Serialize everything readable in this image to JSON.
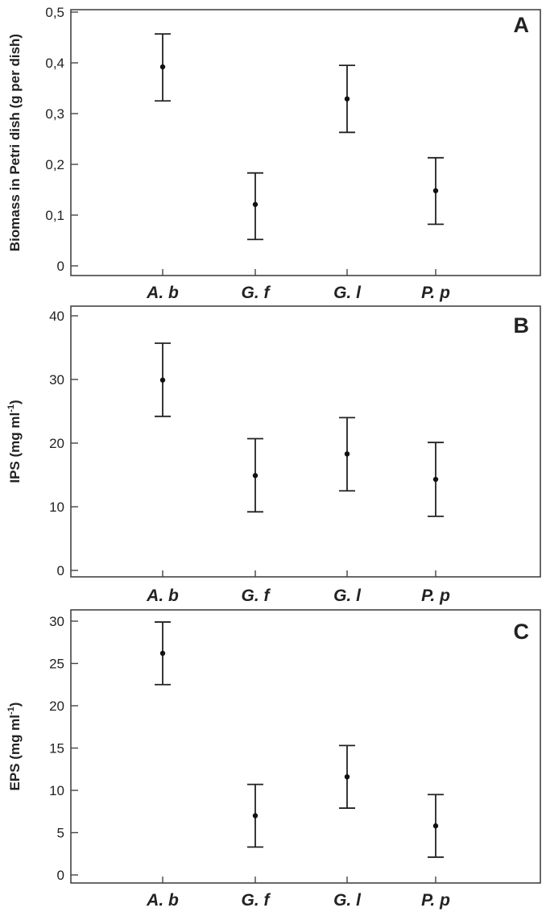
{
  "figure": {
    "panels": [
      {
        "letter": "A",
        "ylabel": "Biomass in Petri dish (g per dish)",
        "ylabel_super": "",
        "ylabel_tail": "",
        "ylim": [
          0,
          0.5
        ],
        "yticks": [
          0,
          0.1,
          0.2,
          0.3,
          0.4,
          0.5
        ],
        "yticklabels": [
          "0",
          "0,1",
          "0,2",
          "0,3",
          "0,4",
          "0,5"
        ],
        "categories": [
          "A. b",
          "G. f",
          "G. l",
          "P. p"
        ],
        "means": [
          0.392,
          0.121,
          0.329,
          0.148
        ],
        "lower": [
          0.325,
          0.052,
          0.263,
          0.082
        ],
        "upper": [
          0.457,
          0.183,
          0.395,
          0.213
        ]
      },
      {
        "letter": "B",
        "ylabel": "IPS (mg ml",
        "ylabel_super": "-1",
        "ylabel_tail": ")",
        "ylim": [
          0,
          40
        ],
        "yticks": [
          0,
          10,
          20,
          30,
          40
        ],
        "yticklabels": [
          "0",
          "10",
          "20",
          "30",
          "40"
        ],
        "categories": [
          "A. b",
          "G. f",
          "G. l",
          "P. p"
        ],
        "means": [
          29.9,
          14.9,
          18.3,
          14.3
        ],
        "lower": [
          24.2,
          9.2,
          12.5,
          8.5
        ],
        "upper": [
          35.7,
          20.7,
          24.0,
          20.1
        ]
      },
      {
        "letter": "C",
        "ylabel": "EPS (mg ml",
        "ylabel_super": "-1",
        "ylabel_tail": ")",
        "ylim": [
          0,
          30
        ],
        "yticks": [
          0,
          5,
          10,
          15,
          20,
          25,
          30
        ],
        "yticklabels": [
          "0",
          "5",
          "10",
          "15",
          "20",
          "25",
          "30"
        ],
        "categories": [
          "A. b",
          "G. f",
          "G. l",
          "P. p"
        ],
        "means": [
          26.2,
          7.0,
          11.6,
          5.8
        ],
        "lower": [
          22.5,
          3.3,
          7.9,
          2.1
        ],
        "upper": [
          29.9,
          10.7,
          15.3,
          9.5
        ]
      }
    ]
  },
  "chart_data": [
    {
      "type": "scatter",
      "title": "A",
      "categories": [
        "A. b",
        "G. f",
        "G. l",
        "P. p"
      ],
      "series": [
        {
          "values": [
            0.392,
            0.121,
            0.329,
            0.148
          ],
          "error_low": [
            0.325,
            0.052,
            0.263,
            0.082
          ],
          "error_high": [
            0.457,
            0.183,
            0.395,
            0.213
          ]
        }
      ],
      "xlabel": "",
      "ylabel": "Biomass in Petri dish (g per dish)",
      "ylim": [
        0,
        0.5
      ],
      "grid": false
    },
    {
      "type": "scatter",
      "title": "B",
      "categories": [
        "A. b",
        "G. f",
        "G. l",
        "P. p"
      ],
      "series": [
        {
          "values": [
            29.9,
            14.9,
            18.3,
            14.3
          ],
          "error_low": [
            24.2,
            9.2,
            12.5,
            8.5
          ],
          "error_high": [
            35.7,
            20.7,
            24.0,
            20.1
          ]
        }
      ],
      "xlabel": "",
      "ylabel": "IPS (mg ml-1)",
      "ylim": [
        0,
        40
      ],
      "grid": false
    },
    {
      "type": "scatter",
      "title": "C",
      "categories": [
        "A. b",
        "G. f",
        "G. l",
        "P. p"
      ],
      "series": [
        {
          "values": [
            26.2,
            7.0,
            11.6,
            5.8
          ],
          "error_low": [
            22.5,
            3.3,
            7.9,
            2.1
          ],
          "error_high": [
            29.9,
            10.7,
            15.3,
            9.5
          ]
        }
      ],
      "xlabel": "",
      "ylabel": "EPS (mg ml-1)",
      "ylim": [
        0,
        30
      ],
      "grid": false
    }
  ]
}
